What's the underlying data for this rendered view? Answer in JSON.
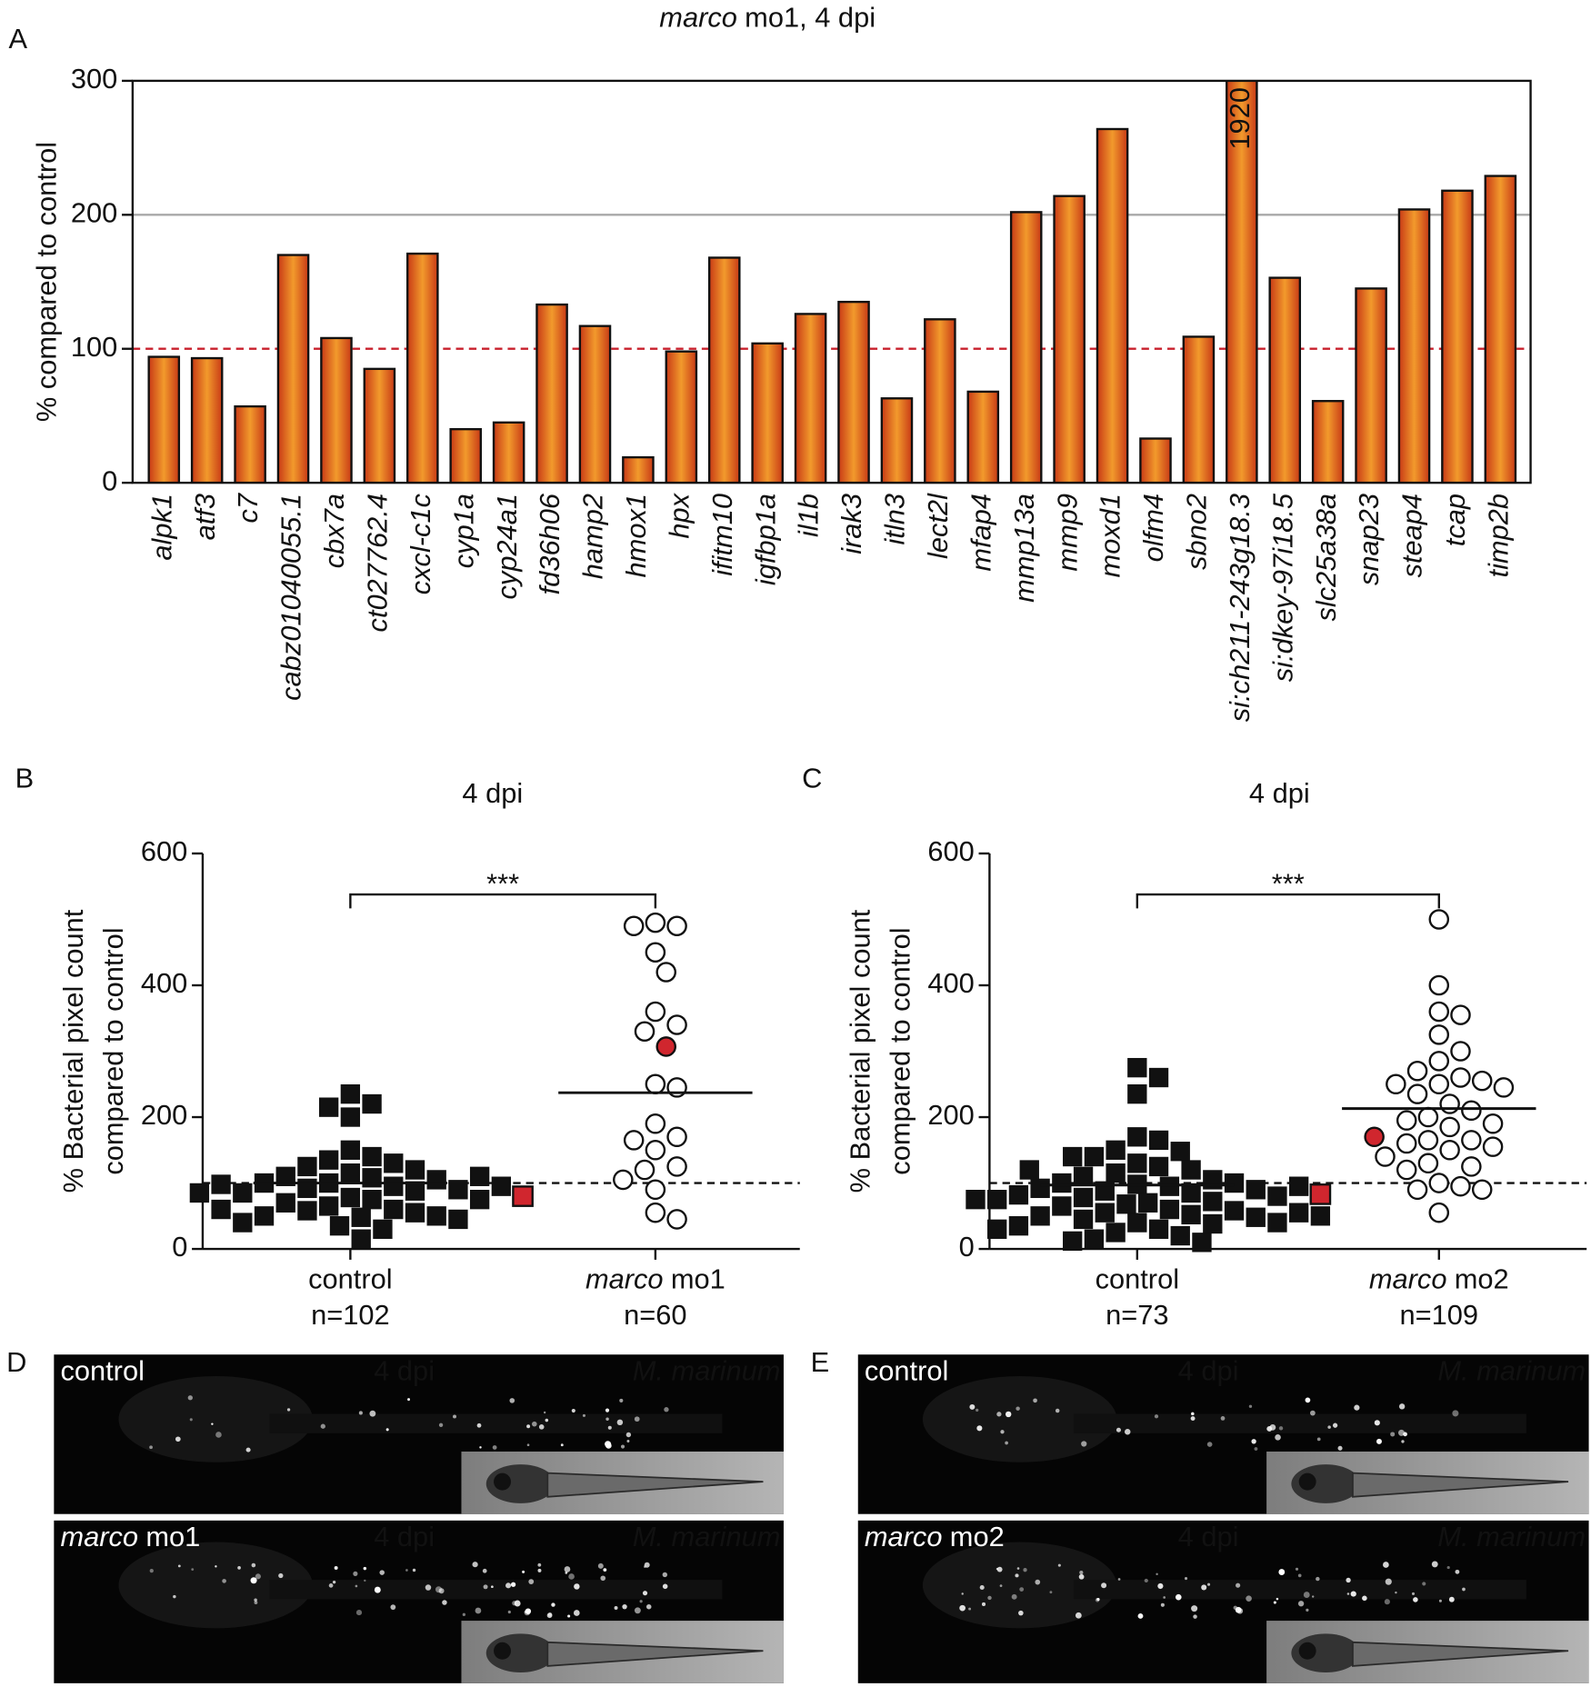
{
  "chart_data": [
    {
      "type": "bar",
      "panel": "A",
      "title": {
        "italic": "marco",
        "text": "mo1, 4 dpi"
      },
      "y_label": "% compared to control",
      "categories": [
        "alpk1",
        "atf3",
        "c7",
        "cabz01040055.1",
        "cbx7a",
        "ct027762.4",
        "cxcl-c1c",
        "cyp1a",
        "cyp24a1",
        "fd36h06",
        "hamp2",
        "hmox1",
        "hpx",
        "ifitm10",
        "igfbp1a",
        "il1b",
        "irak3",
        "itln3",
        "lect2l",
        "mfap4",
        "mmp13a",
        "mmp9",
        "moxd1",
        "olfm4",
        "sbno2",
        "si:ch211-243g18.3",
        "si:dkey-97i18.5",
        "slc25a38a",
        "snap23",
        "steap4",
        "tcap",
        "timp2b"
      ],
      "values": [
        94,
        93,
        57,
        170,
        108,
        85,
        171,
        40,
        45,
        133,
        117,
        19,
        98,
        168,
        104,
        126,
        135,
        63,
        122,
        68,
        202,
        214,
        264,
        33,
        109,
        1920,
        153,
        61,
        145,
        204,
        218,
        229
      ],
      "value_labels": [
        null,
        null,
        null,
        null,
        null,
        null,
        null,
        null,
        null,
        null,
        null,
        null,
        null,
        null,
        null,
        null,
        null,
        null,
        null,
        null,
        null,
        null,
        null,
        null,
        null,
        "1920",
        null,
        null,
        null,
        null,
        null,
        null
      ],
      "ylim": [
        0,
        300
      ],
      "yticks": [
        0,
        100,
        200,
        300
      ],
      "ytick_colors": [
        "#111",
        "#c8202c",
        "#111",
        "#111"
      ],
      "reference_lines": [
        {
          "value": 100,
          "color": "#c8202c",
          "dashed": true
        },
        {
          "value": 200,
          "color": "#a8a8a8",
          "dashed": false
        }
      ]
    },
    {
      "type": "dotplot",
      "panel": "B",
      "title": "4 dpi",
      "y_label": [
        "% Bacterial pixel count",
        "compared to control"
      ],
      "ylim": [
        0,
        600
      ],
      "yticks": [
        0,
        200,
        400,
        600
      ],
      "reference_line": 100,
      "significance": "***",
      "highlight_color": "#d0262e",
      "groups": [
        {
          "label": {
            "text": "control"
          },
          "n_label": "n=102",
          "marker": "square",
          "mean": 100,
          "highlight": 80,
          "values": [
            235,
            220,
            215,
            200,
            150,
            140,
            135,
            130,
            125,
            120,
            115,
            110,
            108,
            105,
            100,
            100,
            95,
            92,
            90,
            88,
            85,
            78,
            75,
            70,
            65,
            60,
            58,
            55,
            50,
            50,
            48,
            45,
            40,
            35,
            30,
            15,
            110,
            98,
            95,
            85,
            75,
            60
          ]
        },
        {
          "label": {
            "italic": "marco",
            "text": "mo1"
          },
          "n_label": "n=60",
          "marker": "circle",
          "mean": 237,
          "highlight": 307,
          "values": [
            495,
            490,
            490,
            450,
            420,
            360,
            340,
            330,
            250,
            245,
            190,
            170,
            165,
            150,
            125,
            120,
            105,
            90,
            55,
            45
          ]
        }
      ]
    },
    {
      "type": "dotplot",
      "panel": "C",
      "title": "4 dpi",
      "y_label": [
        "% Bacterial pixel count",
        "compared to control"
      ],
      "ylim": [
        0,
        600
      ],
      "yticks": [
        0,
        200,
        400,
        600
      ],
      "reference_line": 100,
      "significance": "***",
      "highlight_color": "#d0262e",
      "groups": [
        {
          "label": {
            "text": "control"
          },
          "n_label": "n=73",
          "marker": "square",
          "mean": 97,
          "highlight": 83,
          "values": [
            275,
            260,
            235,
            170,
            165,
            150,
            148,
            140,
            130,
            125,
            120,
            115,
            110,
            105,
            100,
            100,
            98,
            95,
            92,
            90,
            88,
            85,
            82,
            80,
            78,
            75,
            72,
            70,
            68,
            65,
            60,
            58,
            55,
            52,
            50,
            48,
            45,
            40,
            38,
            35,
            30,
            25,
            20,
            15,
            12,
            10,
            140,
            120,
            95,
            75,
            55,
            40,
            30,
            50
          ]
        },
        {
          "label": {
            "italic": "marco",
            "text": "mo2"
          },
          "n_label": "n=109",
          "marker": "circle",
          "mean": 213,
          "highlight": 170,
          "values": [
            500,
            400,
            360,
            355,
            325,
            300,
            285,
            270,
            260,
            255,
            250,
            250,
            245,
            235,
            220,
            210,
            200,
            195,
            190,
            185,
            165,
            165,
            160,
            155,
            150,
            140,
            130,
            125,
            120,
            100,
            95,
            90,
            90,
            55
          ]
        }
      ]
    }
  ],
  "images": [
    {
      "panel": "D",
      "frames": [
        {
          "condition": {
            "text": "control"
          },
          "time": "4 dpi",
          "species": "M. marinum"
        },
        {
          "condition": {
            "italic": "marco",
            "text": "mo1"
          },
          "time": "4 dpi",
          "species": "M. marinum"
        }
      ]
    },
    {
      "panel": "E",
      "frames": [
        {
          "condition": {
            "text": "control"
          },
          "time": "4 dpi",
          "species": "M. marinum"
        },
        {
          "condition": {
            "italic": "marco",
            "text": "mo2"
          },
          "time": "4 dpi",
          "species": "M. marinum"
        }
      ]
    }
  ]
}
